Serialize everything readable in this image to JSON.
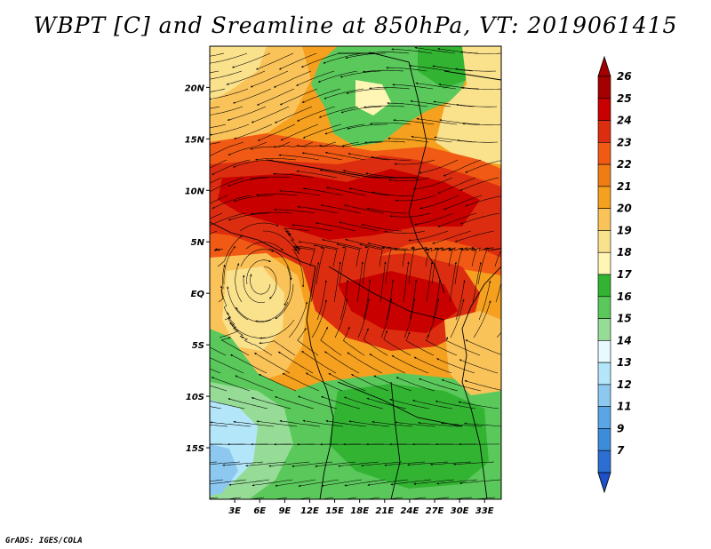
{
  "title": "WBPT [C] and Sreamline at 850hPa, VT: 2019061415",
  "credit": "GrADS: IGES/COLA",
  "map": {
    "lon_range": [
      0,
      35
    ],
    "lat_range": [
      -20,
      24
    ],
    "lon_ticks": [
      {
        "value": 3,
        "label": "3E"
      },
      {
        "value": 6,
        "label": "6E"
      },
      {
        "value": 9,
        "label": "9E"
      },
      {
        "value": 12,
        "label": "12E"
      },
      {
        "value": 15,
        "label": "15E"
      },
      {
        "value": 18,
        "label": "18E"
      },
      {
        "value": 21,
        "label": "21E"
      },
      {
        "value": 24,
        "label": "24E"
      },
      {
        "value": 27,
        "label": "27E"
      },
      {
        "value": 30,
        "label": "30E"
      },
      {
        "value": 33,
        "label": "33E"
      }
    ],
    "lat_ticks": [
      {
        "value": 20,
        "label": "20N"
      },
      {
        "value": 15,
        "label": "15N"
      },
      {
        "value": 10,
        "label": "10N"
      },
      {
        "value": 5,
        "label": "5N"
      },
      {
        "value": 0,
        "label": "EQ"
      },
      {
        "value": -5,
        "label": "5S"
      },
      {
        "value": -10,
        "label": "10S"
      },
      {
        "value": -15,
        "label": "15S"
      }
    ]
  },
  "colorbar": {
    "levels": [
      {
        "label": "26",
        "color": "#a50000"
      },
      {
        "label": "25",
        "color": "#c80000"
      },
      {
        "label": "24",
        "color": "#dc2d10"
      },
      {
        "label": "23",
        "color": "#f05a14"
      },
      {
        "label": "22",
        "color": "#f07d14"
      },
      {
        "label": "21",
        "color": "#f5a01e"
      },
      {
        "label": "20",
        "color": "#fac35a"
      },
      {
        "label": "19",
        "color": "#fae18c"
      },
      {
        "label": "18",
        "color": "#fff5b4"
      },
      {
        "label": "17",
        "color": "#32b432"
      },
      {
        "label": "16",
        "color": "#5ac85a"
      },
      {
        "label": "15",
        "color": "#96dc96"
      },
      {
        "label": "14",
        "color": "#e6faff"
      },
      {
        "label": "13",
        "color": "#b4e6fa"
      },
      {
        "label": "12",
        "color": "#8cc8f0"
      },
      {
        "label": "11",
        "color": "#5aa5e6"
      },
      {
        "label": "9",
        "color": "#3c8cdc"
      },
      {
        "label": "7",
        "color": "#2d6ed2"
      }
    ],
    "low_color": "#1e50c8",
    "high_color": "#a50000"
  }
}
